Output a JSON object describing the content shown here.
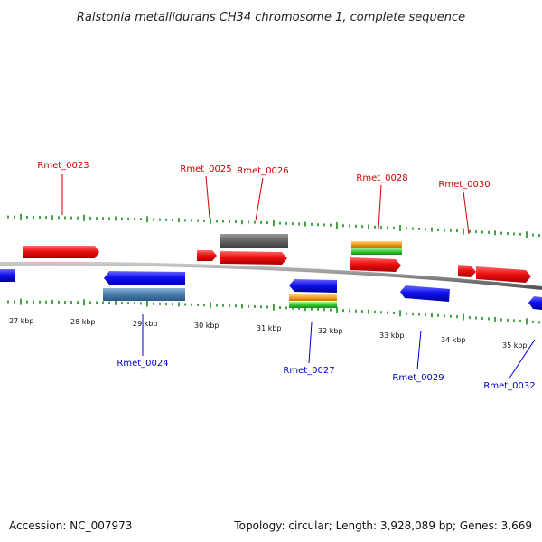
{
  "title": "Ralstonia metallidurans CH34 chromosome 1, complete sequence",
  "footer": {
    "accession": "Accession: NC_007973",
    "summary": "Topology: circular; Length: 3,928,089 bp; Genes: 3,669"
  },
  "colors": {
    "backbone": "#8a8a8a",
    "tick": "#1a8a1a",
    "forward_gene": "#ee1111",
    "reverse_gene": "#1111ee",
    "steel_gene": "#4a7fb0",
    "gray_gene": "#666666",
    "orange_gene": "#f5a020",
    "green_gene": "#33cc33",
    "forward_label": "#cc0000",
    "reverse_label": "#0000cc"
  },
  "kbp_labels": [
    "27 kbp",
    "28 kbp",
    "29 kbp",
    "30 kbp",
    "31 kbp",
    "32 kbp",
    "33 kbp",
    "34 kbp",
    "35 kbp"
  ],
  "gene_labels": {
    "forward": [
      "Rmet_0023",
      "Rmet_0025",
      "Rmet_0026",
      "Rmet_0028",
      "Rmet_0030"
    ],
    "reverse": [
      "Rmet_0024",
      "Rmet_0027",
      "Rmet_0029",
      "Rmet_0032"
    ]
  }
}
